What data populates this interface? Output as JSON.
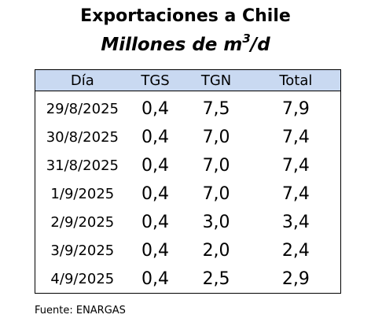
{
  "chart_data": {
    "type": "table",
    "title": "Exportaciones a Chile",
    "subtitle_main": "Millones de m",
    "subtitle_sup": "3",
    "subtitle_tail": "/d",
    "columns": [
      "Día",
      "TGS",
      "TGN",
      "Total"
    ],
    "rows": [
      [
        "29/8/2025",
        "0,4",
        "7,5",
        "7,9"
      ],
      [
        "30/8/2025",
        "0,4",
        "7,0",
        "7,4"
      ],
      [
        "31/8/2025",
        "0,4",
        "7,0",
        "7,4"
      ],
      [
        "1/9/2025",
        "0,4",
        "7,0",
        "7,4"
      ],
      [
        "2/9/2025",
        "0,4",
        "3,0",
        "3,4"
      ],
      [
        "3/9/2025",
        "0,4",
        "2,0",
        "2,4"
      ],
      [
        "4/9/2025",
        "0,4",
        "2,5",
        "2,9"
      ]
    ],
    "source": "Fuente: ENARGAS",
    "header_color": "#c9d9f1"
  }
}
